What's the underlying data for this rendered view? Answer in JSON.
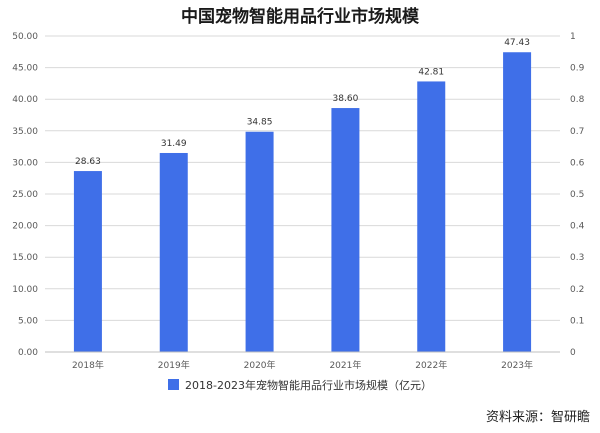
{
  "chart_data": {
    "type": "bar",
    "title": "中国宠物智能用品行业市场规模",
    "categories": [
      "2018年",
      "2019年",
      "2020年",
      "2021年",
      "2022年",
      "2023年"
    ],
    "series": [
      {
        "name": "2018-2023年宠物智能用品行业市场规模（亿元）",
        "values": [
          28.63,
          31.49,
          34.85,
          38.6,
          42.81,
          47.43
        ]
      }
    ],
    "data_labels": [
      "28.63",
      "31.49",
      "34.85",
      "38.60",
      "42.81",
      "47.43"
    ],
    "ylim": [
      0,
      50
    ],
    "y_ticks": [
      "0.00",
      "5.00",
      "10.00",
      "15.00",
      "20.00",
      "25.00",
      "30.00",
      "35.00",
      "40.00",
      "45.00",
      "50.00"
    ],
    "y2lim": [
      0,
      1
    ],
    "y2_ticks": [
      "0",
      "0.1",
      "0.2",
      "0.3",
      "0.4",
      "0.5",
      "0.6",
      "0.7",
      "0.8",
      "0.9",
      "1"
    ],
    "grid": true,
    "legend_position": "bottom",
    "bar_color": "#3F6FE8"
  },
  "source": "资料来源：智研瞻"
}
